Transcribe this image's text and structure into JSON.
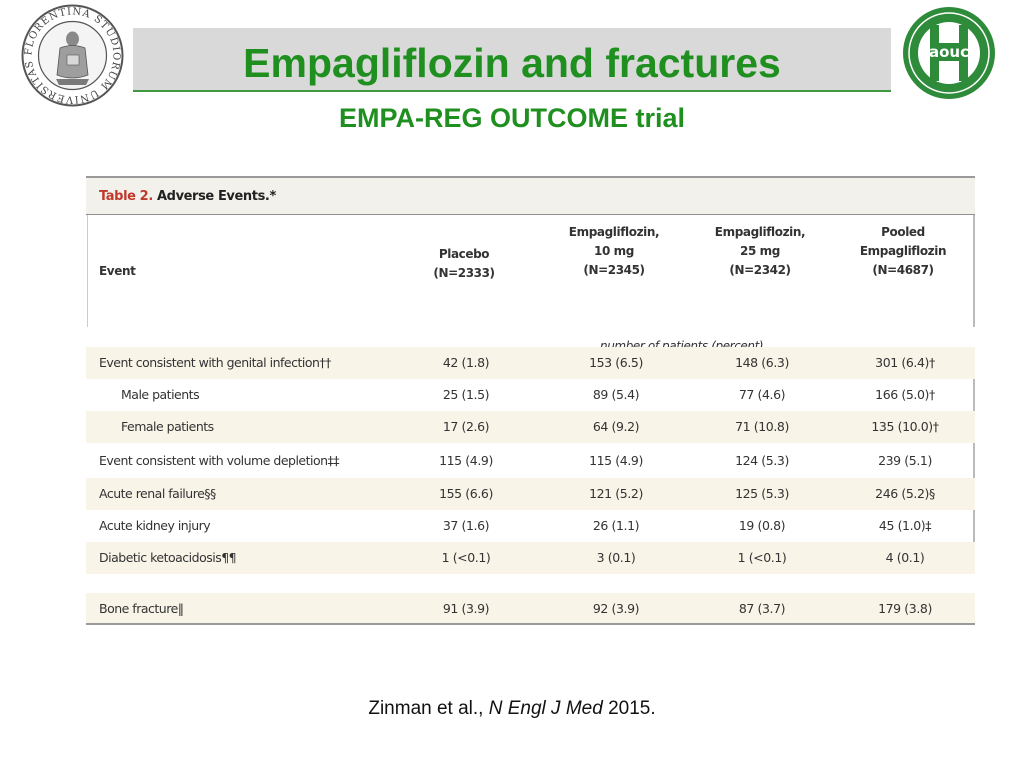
{
  "slide": {
    "title": "Empagliflozin and fractures",
    "subtitle": "EMPA-REG OUTCOME trial"
  },
  "logos": {
    "left_seal_text": "FLORENTINA STUDIORUM UNIVERSITAS",
    "right_logo_text": "aouc"
  },
  "table": {
    "caption_label": "Table 2.",
    "caption_title": "Adverse Events.*",
    "event_header": "Event",
    "columns": [
      "Placebo\n(N=2333)",
      "Empagliflozin,\n10 mg\n(N=2345)",
      "Empagliflozin,\n25 mg\n(N=2342)",
      "Pooled\nEmpagliflozin\n(N=4687)"
    ],
    "units_note": "number of patients (percent)",
    "rows": [
      {
        "label": "Event consistent with genital infection††",
        "values": [
          "42 (1.8)",
          "153 (6.5)",
          "148 (6.3)",
          "301 (6.4)†"
        ]
      },
      {
        "label": "Male patients",
        "values": [
          "25 (1.5)",
          "89 (5.4)",
          "77 (4.6)",
          "166 (5.0)†"
        ]
      },
      {
        "label": "Female patients",
        "values": [
          "17 (2.6)",
          "64 (9.2)",
          "71 (10.8)",
          "135 (10.0)†"
        ]
      },
      {
        "label": "Event consistent with volume depletion‡‡",
        "values": [
          "115 (4.9)",
          "115 (4.9)",
          "124 (5.3)",
          "239 (5.1)"
        ]
      },
      {
        "label": "Acute renal failure§§",
        "values": [
          "155 (6.6)",
          "121 (5.2)",
          "125 (5.3)",
          "246 (5.2)§"
        ]
      },
      {
        "label": "Acute kidney injury",
        "values": [
          "37 (1.6)",
          "26 (1.1)",
          "19 (0.8)",
          "45 (1.0)‡"
        ]
      },
      {
        "label": "Diabetic ketoacidosis¶¶",
        "values": [
          "1 (<0.1)",
          "3 (0.1)",
          "1 (<0.1)",
          "4 (0.1)"
        ]
      },
      {
        "label": "Bone fracture‖",
        "values": [
          "91 (3.9)",
          "92 (3.9)",
          "87 (3.7)",
          "179 (3.8)"
        ]
      }
    ]
  },
  "citation": {
    "authors": "Zinman et al.,",
    "journal": "N Engl J Med",
    "year": "2015."
  },
  "colors": {
    "title_green": "#1f8f1f",
    "band_gray": "#d9d9d9",
    "table_shade": "#f8f4e8",
    "caption_red": "#c0392b"
  }
}
